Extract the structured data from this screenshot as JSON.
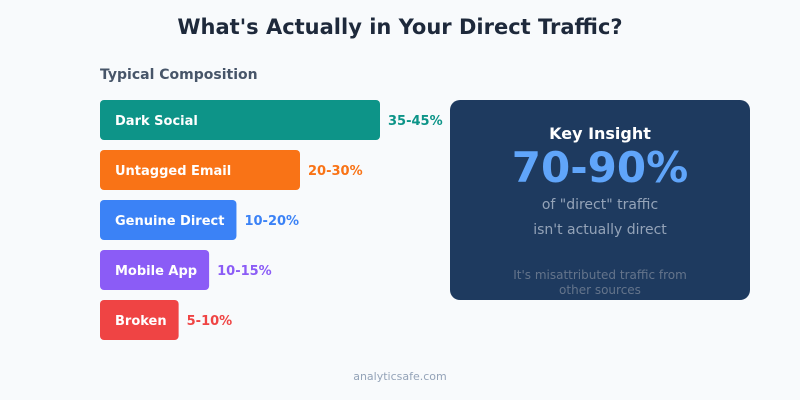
{
  "title": "What's Actually in Your Direct Traffic?",
  "chart_data": {
    "type": "bar",
    "title": "Typical Composition",
    "orientation": "horizontal",
    "categories": [
      "Dark Social",
      "Untagged Email",
      "Genuine Direct",
      "Mobile App",
      "Broken"
    ],
    "labels": [
      "35-45%",
      "20-30%",
      "10-20%",
      "10-15%",
      "5-10%"
    ],
    "values": [
      40,
      25,
      15,
      12.5,
      7.5
    ],
    "colors": [
      "#0d9488",
      "#f97316",
      "#3b82f6",
      "#8b5cf6",
      "#ef4444"
    ]
  },
  "insight": {
    "heading": "Key Insight",
    "value": "70-90%",
    "line1": "of \"direct\" traffic",
    "line2": "isn't actually direct",
    "note": "It's misattributed traffic from other sources"
  },
  "footer": "analyticsafe.com"
}
